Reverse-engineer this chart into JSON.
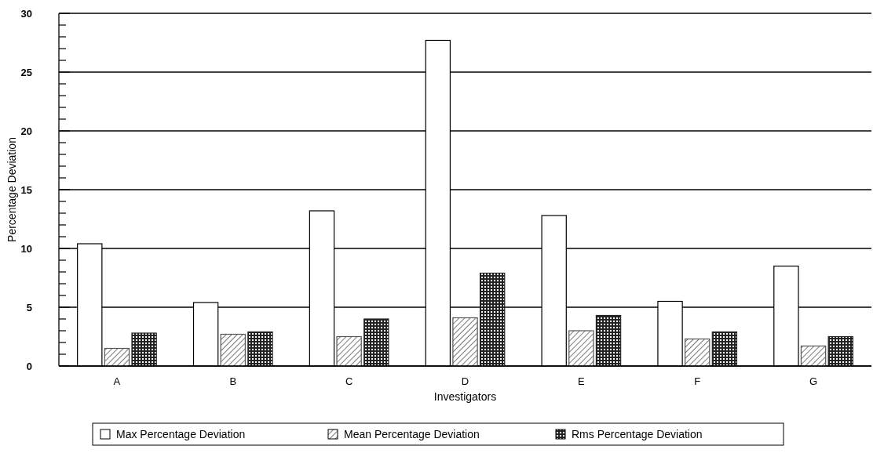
{
  "chart_data": {
    "type": "bar",
    "xlabel": "Investigators",
    "ylabel": "Percentage Deviation",
    "categories": [
      "A",
      "B",
      "C",
      "D",
      "E",
      "F",
      "G"
    ],
    "series": [
      {
        "name": "Max Percentage Deviation",
        "color": "#ffffff",
        "values": [
          10.4,
          5.4,
          13.2,
          27.7,
          12.8,
          5.5,
          8.5
        ]
      },
      {
        "name": "Mean Percentage Deviation",
        "color": "#555555",
        "values": [
          1.5,
          2.7,
          2.5,
          4.1,
          3.0,
          2.3,
          1.7
        ]
      },
      {
        "name": "Rms Percentage Deviation",
        "color": "#222222",
        "values": [
          2.8,
          2.9,
          4.0,
          7.9,
          4.3,
          2.9,
          2.5
        ]
      }
    ],
    "ylim": [
      0,
      30
    ],
    "yticks": [
      0,
      {
        "value": 1,
        "label": null
      },
      {
        "value": 2,
        "label": null
      },
      {
        "value": 3,
        "label": null
      },
      {
        "value": 4,
        "label": null
      },
      5,
      {
        "value": 6,
        "label": null
      },
      {
        "value": 7,
        "label": null
      },
      {
        "value": 8,
        "label": null
      },
      {
        "value": 9,
        "label": null
      },
      10,
      {
        "value": 11,
        "label": null
      },
      {
        "value": 12,
        "label": null
      },
      {
        "value": 13,
        "label": null
      },
      {
        "value": 14,
        "label": null
      },
      15,
      {
        "value": 16,
        "label": null
      },
      {
        "value": 17,
        "label": null
      },
      {
        "value": 18,
        "label": null
      },
      {
        "value": 19,
        "label": null
      },
      20,
      {
        "value": 21,
        "label": null
      },
      {
        "value": 22,
        "label": null
      },
      {
        "value": 23,
        "label": null
      },
      {
        "value": 24,
        "label": null
      },
      25,
      {
        "value": 26,
        "label": null
      },
      {
        "value": 27,
        "label": null
      },
      {
        "value": 28,
        "label": null
      },
      {
        "value": 29,
        "label": null
      },
      30
    ],
    "grid": "y",
    "legend": "bottom"
  }
}
